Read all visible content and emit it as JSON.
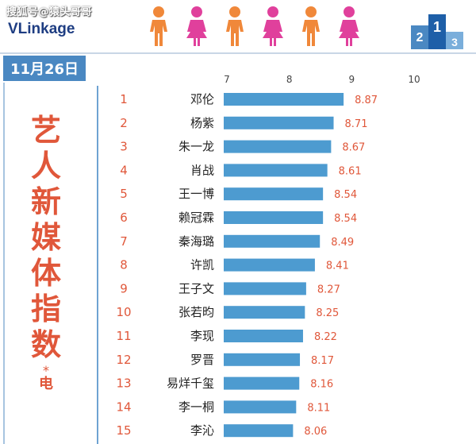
{
  "watermark": "搜狐号@猿头哥哥",
  "brand": {
    "logo_v": "VL",
    "logo_rest": "inkage"
  },
  "date_label": "11月26日",
  "title_chars": [
    "艺",
    "人",
    "新",
    "媒",
    "体",
    "指",
    "数"
  ],
  "title_star": "*",
  "title_tail": "电",
  "podium_numbers": [
    "2",
    "1",
    "3"
  ],
  "colors": {
    "accent": "#e0573a",
    "bar": "#4d9bd0",
    "date_bg": "#4a88c2",
    "logo": "#1e3d82",
    "person_orange": "#f0883a",
    "person_pink": "#e0409c"
  },
  "chart_data": {
    "type": "bar",
    "orientation": "horizontal",
    "xlim": [
      7,
      10
    ],
    "x_ticks": [
      7,
      8,
      9,
      10
    ],
    "ranks": [
      1,
      2,
      3,
      4,
      5,
      6,
      7,
      8,
      9,
      10,
      11,
      12,
      13,
      14,
      15
    ],
    "categories": [
      "邓伦",
      "杨紫",
      "朱一龙",
      "肖战",
      "王一博",
      "赖冠霖",
      "秦海璐",
      "许凯",
      "王子文",
      "张若昀",
      "李现",
      "罗晋",
      "易烊千玺",
      "李一桐",
      "李沁"
    ],
    "values": [
      8.87,
      8.71,
      8.67,
      8.61,
      8.54,
      8.54,
      8.49,
      8.41,
      8.27,
      8.25,
      8.22,
      8.17,
      8.16,
      8.11,
      8.06
    ]
  }
}
